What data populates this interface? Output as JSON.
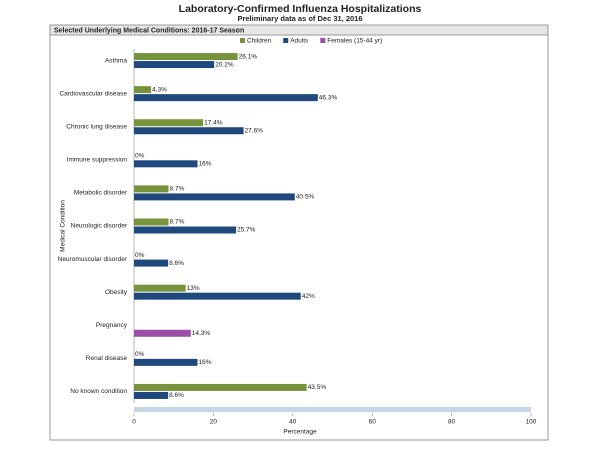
{
  "chart_data": {
    "type": "bar",
    "orientation": "horizontal",
    "title": "Laboratory-Confirmed Influenza Hospitalizations",
    "subtitle": "Preliminary data as of Dec 31, 2016",
    "panel_title": "Selected Underlying Medical Conditions: 2016-17 Season",
    "x_label": "Percentage",
    "y_label": "Medical Condition",
    "categories": [
      "Asthma",
      "Cardiovascular disease",
      "Chronic lung disease",
      "Immune suppression",
      "Metabolic disorder",
      "Neurologic disorder",
      "Neuromuscular disorder",
      "Obesity",
      "Pregnancy",
      "Renal disease",
      "No known condition"
    ],
    "series": [
      {
        "name": "Children",
        "color": "#77933c",
        "values": [
          26.1,
          4.3,
          17.4,
          0,
          8.7,
          8.7,
          0,
          13,
          null,
          0,
          43.5
        ],
        "value_labels": [
          "26.1%",
          "4.3%",
          "17.4%",
          "0%",
          "8.7%",
          "8.7%",
          "0%",
          "13%",
          null,
          "0%",
          "43.5%"
        ]
      },
      {
        "name": "Adults",
        "color": "#1f497d",
        "values": [
          20.2,
          46.3,
          27.6,
          16,
          40.5,
          25.7,
          8.6,
          42,
          null,
          16,
          8.6
        ],
        "value_labels": [
          "20.2%",
          "46.3%",
          "27.6%",
          "16%",
          "40.5%",
          "25.7%",
          "8.6%",
          "42%",
          null,
          "16%",
          "8.6%"
        ]
      },
      {
        "name": "Females (15-44 yr)",
        "color": "#9b4fa8",
        "values": [
          null,
          null,
          null,
          null,
          null,
          null,
          null,
          null,
          14.3,
          null,
          null
        ],
        "value_labels": [
          null,
          null,
          null,
          null,
          null,
          null,
          null,
          null,
          "14.3%",
          null,
          null
        ]
      }
    ],
    "xlim": [
      0,
      100
    ],
    "xticks": [
      0,
      20,
      40,
      60,
      80,
      100
    ]
  }
}
